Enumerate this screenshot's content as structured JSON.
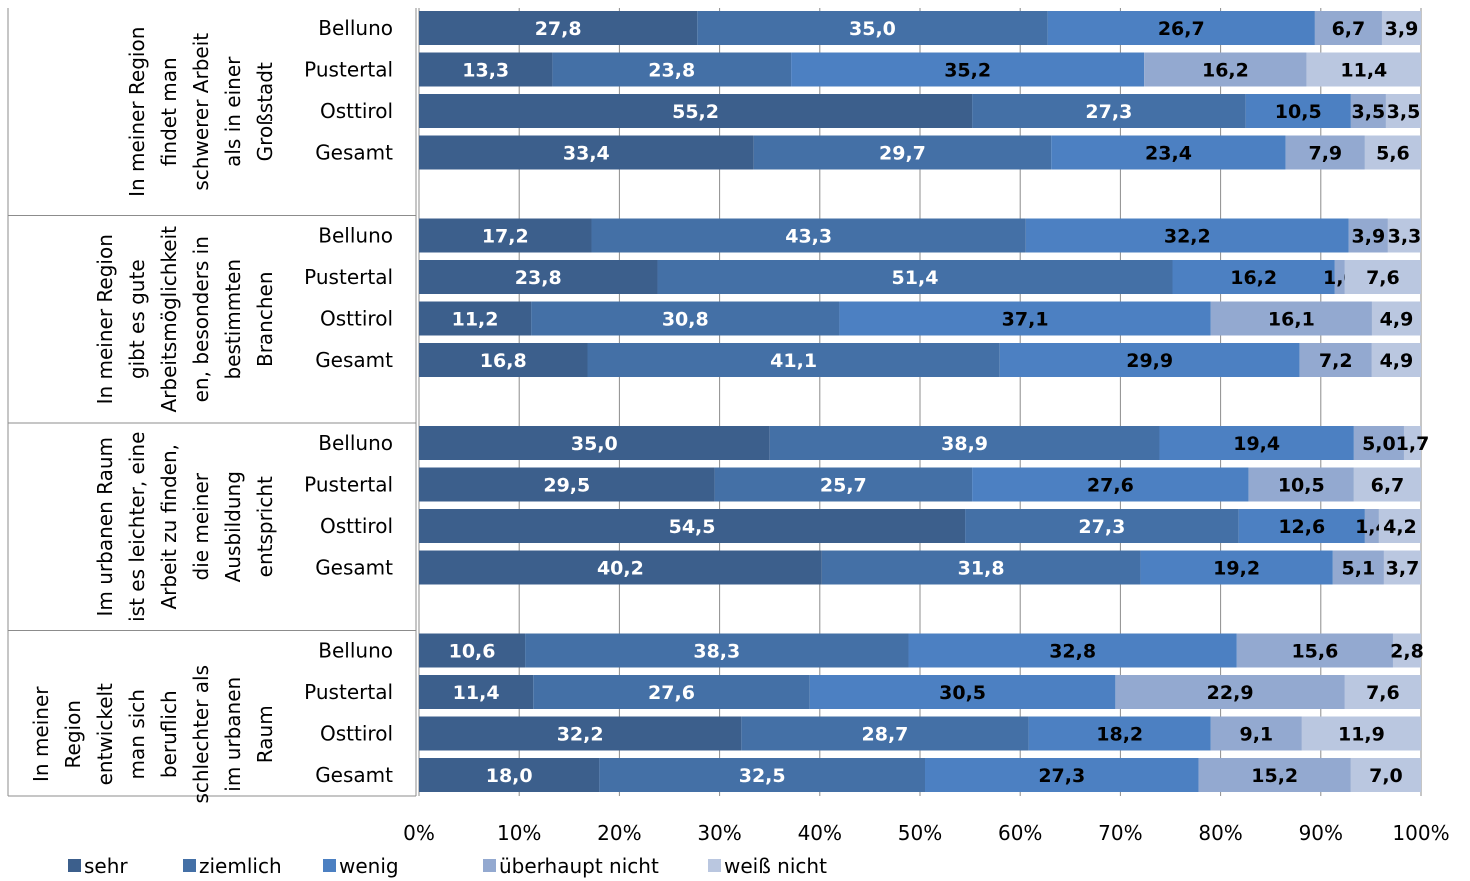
{
  "chart_data": {
    "type": "bar",
    "orientation": "horizontal",
    "stacked": true,
    "percent": true,
    "xlim": [
      0,
      100
    ],
    "x_ticks": [
      "0%",
      "10%",
      "20%",
      "30%",
      "40%",
      "50%",
      "60%",
      "70%",
      "80%",
      "90%",
      "100%"
    ],
    "grid": "vertical",
    "legend_position": "bottom",
    "series": [
      {
        "name": "sehr",
        "color": "#3C5F8C"
      },
      {
        "name": "ziemlich",
        "color": "#4470A6"
      },
      {
        "name": "wenig",
        "color": "#4C80C2"
      },
      {
        "name": "überhaupt nicht",
        "color": "#93A9D0"
      },
      {
        "name": "weiß nicht",
        "color": "#BAC7E0"
      }
    ],
    "groups": [
      {
        "label_lines": [
          "In meiner Region",
          "findet man",
          "schwerer Arbeit",
          "als in einer",
          "Großstadt"
        ],
        "rows": [
          {
            "label": "Belluno",
            "values": [
              27.8,
              35.0,
              26.7,
              6.7,
              3.9
            ],
            "labels": [
              "27,8",
              "35,0",
              "26,7",
              "6,7",
              "3,9"
            ]
          },
          {
            "label": "Pustertal",
            "values": [
              13.3,
              23.8,
              35.2,
              16.2,
              11.4
            ],
            "labels": [
              "13,3",
              "23,8",
              "35,2",
              "16,2",
              "11,4"
            ]
          },
          {
            "label": "Osttirol",
            "values": [
              55.2,
              27.3,
              10.5,
              3.5,
              3.5
            ],
            "labels": [
              "55,2",
              "27,3",
              "10,5",
              "3,5",
              "3,5"
            ]
          },
          {
            "label": "Gesamt",
            "values": [
              33.4,
              29.7,
              23.4,
              7.9,
              5.6
            ],
            "labels": [
              "33,4",
              "29,7",
              "23,4",
              "7,9",
              "5,6"
            ]
          }
        ]
      },
      {
        "label_lines": [
          "In meiner Region",
          "gibt es gute",
          "Arbeitsmöglichkeit",
          "en, besonders in",
          "bestimmten",
          "Branchen"
        ],
        "rows": [
          {
            "label": "Belluno",
            "values": [
              17.2,
              43.3,
              32.2,
              3.9,
              3.3
            ],
            "labels": [
              "17,2",
              "43,3",
              "32,2",
              "3,9",
              "3,3"
            ]
          },
          {
            "label": "Pustertal",
            "values": [
              23.8,
              51.4,
              16.2,
              1.0,
              7.6
            ],
            "labels": [
              "23,8",
              "51,4",
              "16,2",
              "1,0",
              "7,6"
            ]
          },
          {
            "label": "Osttirol",
            "values": [
              11.2,
              30.8,
              37.1,
              16.1,
              4.9
            ],
            "labels": [
              "11,2",
              "30,8",
              "37,1",
              "16,1",
              "4,9"
            ]
          },
          {
            "label": "Gesamt",
            "values": [
              16.8,
              41.1,
              29.9,
              7.2,
              4.9
            ],
            "labels": [
              "16,8",
              "41,1",
              "29,9",
              "7,2",
              "4,9"
            ]
          }
        ]
      },
      {
        "label_lines": [
          "Im urbanen Raum",
          "ist es leichter, eine",
          "Arbeit zu finden,",
          "die meiner",
          "Ausbildung",
          "entspricht"
        ],
        "rows": [
          {
            "label": "Belluno",
            "values": [
              35.0,
              38.9,
              19.4,
              5.0,
              1.7
            ],
            "labels": [
              "35,0",
              "38,9",
              "19,4",
              "5,0",
              "1,7"
            ]
          },
          {
            "label": "Pustertal",
            "values": [
              29.5,
              25.7,
              27.6,
              10.5,
              6.7
            ],
            "labels": [
              "29,5",
              "25,7",
              "27,6",
              "10,5",
              "6,7"
            ]
          },
          {
            "label": "Osttirol",
            "values": [
              54.5,
              27.3,
              12.6,
              1.4,
              4.2
            ],
            "labels": [
              "54,5",
              "27,3",
              "12,6",
              "1,4",
              "4,2"
            ]
          },
          {
            "label": "Gesamt",
            "values": [
              40.2,
              31.8,
              19.2,
              5.1,
              3.7
            ],
            "labels": [
              "40,2",
              "31,8",
              "19,2",
              "5,1",
              "3,7"
            ]
          }
        ]
      },
      {
        "label_lines": [
          "In meiner",
          "Region",
          "entwickelt",
          "man sich",
          "beruflich",
          "schlechter als",
          "im urbanen",
          "Raum"
        ],
        "rows": [
          {
            "label": "Belluno",
            "values": [
              10.6,
              38.3,
              32.8,
              15.6,
              2.8
            ],
            "labels": [
              "10,6",
              "38,3",
              "32,8",
              "15,6",
              "2,8"
            ]
          },
          {
            "label": "Pustertal",
            "values": [
              11.4,
              27.6,
              30.5,
              22.9,
              7.6
            ],
            "labels": [
              "11,4",
              "27,6",
              "30,5",
              "22,9",
              "7,6"
            ]
          },
          {
            "label": "Osttirol",
            "values": [
              32.2,
              28.7,
              18.2,
              9.1,
              11.9
            ],
            "labels": [
              "32,2",
              "28,7",
              "18,2",
              "9,1",
              "11,9"
            ]
          },
          {
            "label": "Gesamt",
            "values": [
              18.0,
              32.5,
              27.3,
              15.2,
              7.0
            ],
            "labels": [
              "18,0",
              "32,5",
              "27,3",
              "15,2",
              "7,0"
            ]
          }
        ]
      }
    ]
  }
}
